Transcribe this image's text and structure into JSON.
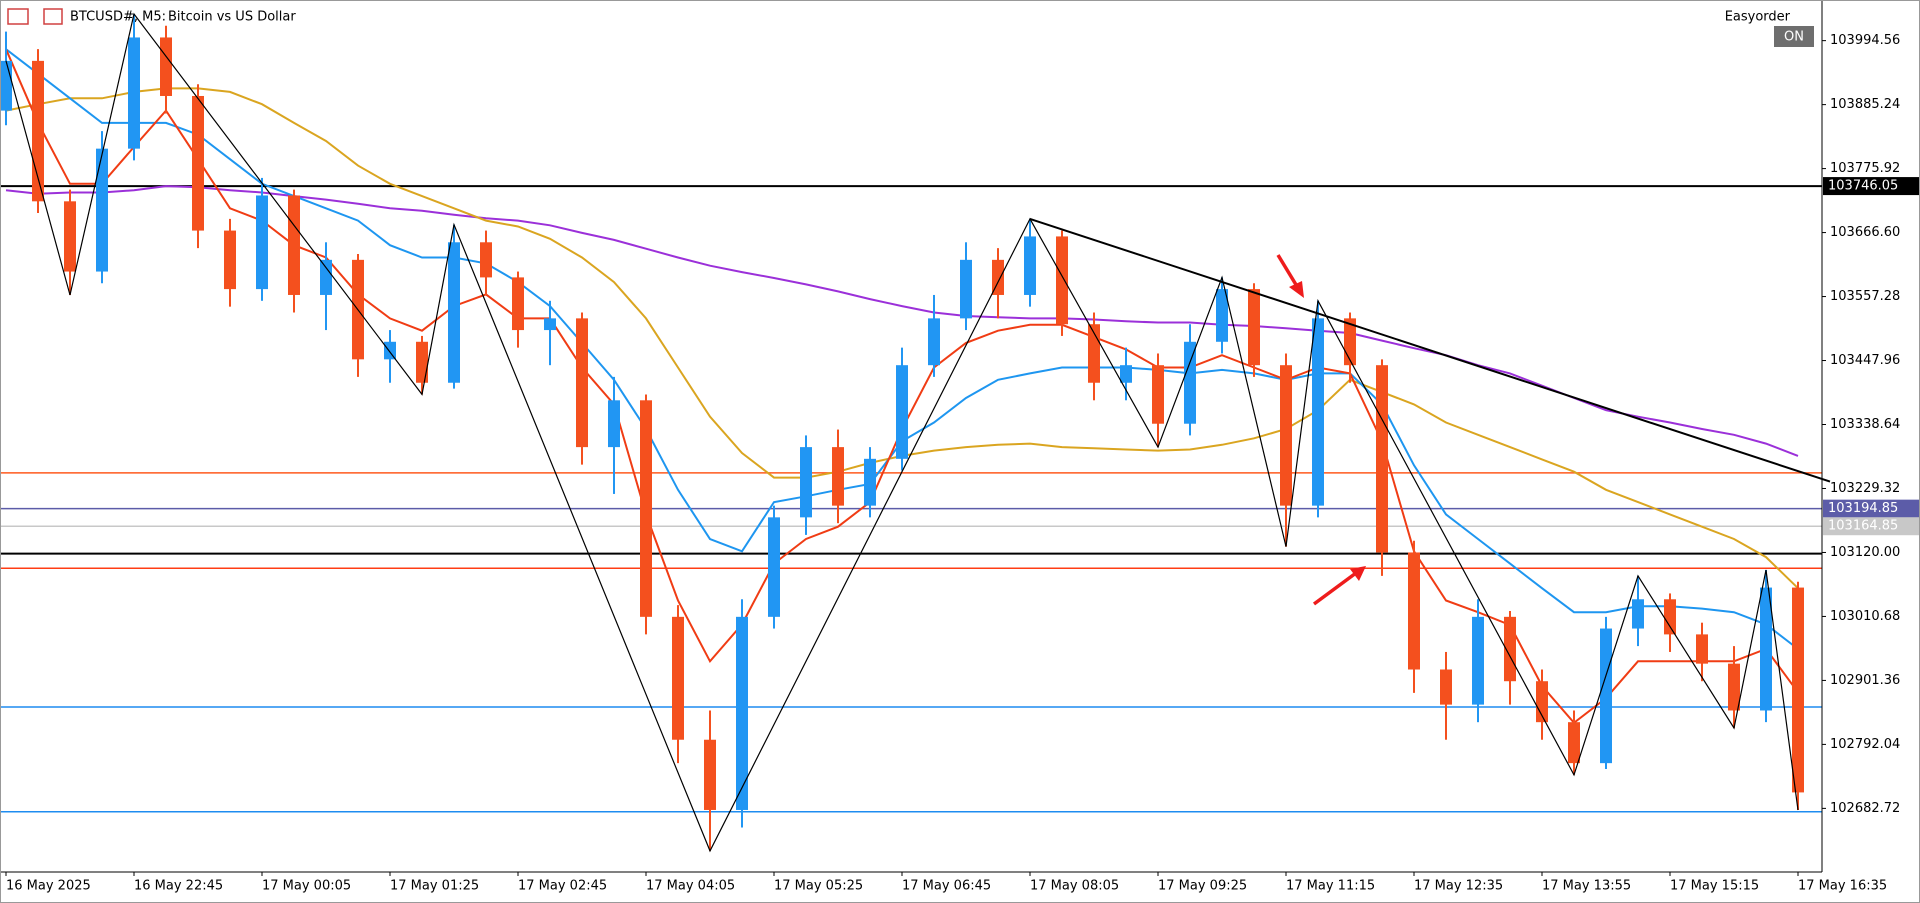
{
  "chart_data": {
    "type": "candlestick",
    "symbol": "BTCUSD#, M5:",
    "description": "Bitcoin vs US Dollar",
    "expert": "Easyorder",
    "button": "ON",
    "categories": [
      "16 May 2025",
      null,
      null,
      null,
      "16 May 22:45",
      null,
      null,
      null,
      "17 May 00:05",
      null,
      null,
      null,
      "17 May 01:25",
      null,
      null,
      null,
      "17 May 02:45",
      null,
      null,
      null,
      "17 May 04:05",
      null,
      null,
      null,
      "17 May 05:25",
      null,
      null,
      null,
      "17 May 06:45",
      null,
      null,
      null,
      "17 May 08:05",
      null,
      null,
      null,
      "17 May 09:25",
      null,
      null,
      null,
      "17 May 11:15",
      null,
      null,
      null,
      "17 May 12:35",
      null,
      null,
      null,
      "17 May 13:55",
      null,
      null,
      null,
      "17 May 15:15",
      null,
      null,
      null,
      "17 May 16:35"
    ],
    "open": [
      103875,
      103960,
      103720,
      103600,
      103810,
      104000,
      103900,
      103670,
      103570,
      103730,
      103560,
      103620,
      103450,
      103480,
      103410,
      103650,
      103590,
      103500,
      103520,
      103300,
      103380,
      103010,
      102800,
      102680,
      103010,
      103180,
      103300,
      103200,
      103280,
      103440,
      103520,
      103620,
      103560,
      103660,
      103510,
      103410,
      103440,
      103340,
      103480,
      103570,
      103440,
      103200,
      103520,
      103440,
      103120,
      102920,
      102860,
      103010,
      102900,
      102830,
      102760,
      102990,
      103040,
      102980,
      102930,
      102850,
      103060
    ],
    "high": [
      104010,
      103980,
      103740,
      103840,
      104040,
      104020,
      103920,
      103690,
      103760,
      103740,
      103650,
      103630,
      103500,
      103490,
      103680,
      103670,
      103600,
      103550,
      103530,
      103420,
      103390,
      103030,
      102850,
      103040,
      103200,
      103320,
      103330,
      103300,
      103470,
      103560,
      103650,
      103640,
      103690,
      103670,
      103530,
      103470,
      103460,
      103510,
      103590,
      103580,
      103460,
      103550,
      103530,
      103450,
      103140,
      102950,
      103040,
      103020,
      102920,
      102850,
      103010,
      103080,
      103050,
      103000,
      102960,
      103090,
      103070
    ],
    "low": [
      103850,
      103700,
      103560,
      103580,
      103790,
      103870,
      103640,
      103540,
      103550,
      103530,
      103500,
      103420,
      103410,
      103390,
      103400,
      103560,
      103470,
      103440,
      103270,
      103220,
      102980,
      102760,
      102610,
      102650,
      102990,
      103150,
      103170,
      103180,
      103260,
      103420,
      103500,
      103520,
      103540,
      103490,
      103380,
      103380,
      103300,
      103320,
      103460,
      103420,
      103130,
      103180,
      103410,
      103080,
      102880,
      102800,
      102830,
      102860,
      102800,
      102740,
      102750,
      102960,
      102950,
      102900,
      102820,
      102830,
      102680
    ],
    "close": [
      103960,
      103720,
      103600,
      103810,
      104000,
      103900,
      103670,
      103570,
      103730,
      103560,
      103620,
      103450,
      103480,
      103410,
      103650,
      103590,
      103500,
      103520,
      103300,
      103380,
      103010,
      102800,
      102680,
      103010,
      103180,
      103300,
      103200,
      103280,
      103440,
      103520,
      103620,
      103560,
      103660,
      103510,
      103410,
      103440,
      103340,
      103480,
      103570,
      103440,
      103200,
      103520,
      103440,
      103120,
      102920,
      102860,
      103010,
      102900,
      102830,
      102760,
      102990,
      103040,
      102980,
      102930,
      102850,
      103060,
      102710
    ],
    "up_color": "#2196f3",
    "down_color": "#f4501e",
    "moving_averages": [
      {
        "color": "#9b30d9",
        "values": [
          103739,
          103733,
          103735,
          103735,
          103739,
          103746,
          103744,
          103739,
          103735,
          103729,
          103723,
          103716,
          103708,
          103704,
          103697,
          103691,
          103687,
          103679,
          103666,
          103654,
          103639,
          103624,
          103610,
          103599,
          103589,
          103578,
          103566,
          103553,
          103541,
          103530,
          103524,
          103522,
          103520,
          103520,
          103518,
          103515,
          103513,
          103513,
          103509,
          103507,
          103503,
          103499,
          103495,
          103482,
          103469,
          103457,
          103440,
          103426,
          103405,
          103384,
          103363,
          103352,
          103342,
          103331,
          103321,
          103306,
          103285
        ]
      },
      {
        "color": "#daa520",
        "values": [
          103875,
          103886,
          103896,
          103896,
          103907,
          103913,
          103913,
          103907,
          103886,
          103854,
          103823,
          103781,
          103750,
          103729,
          103708,
          103687,
          103677,
          103656,
          103624,
          103582,
          103520,
          103436,
          103352,
          103290,
          103248,
          103248,
          103258,
          103273,
          103285,
          103294,
          103300,
          103304,
          103306,
          103300,
          103298,
          103296,
          103294,
          103296,
          103304,
          103315,
          103331,
          103363,
          103415,
          103394,
          103373,
          103342,
          103321,
          103300,
          103279,
          103258,
          103227,
          103206,
          103185,
          103164,
          103143,
          103112,
          103059
        ]
      },
      {
        "color": "#1e96f0",
        "values": [
          103980,
          103938,
          103896,
          103854,
          103854,
          103854,
          103834,
          103792,
          103750,
          103729,
          103708,
          103687,
          103645,
          103624,
          103624,
          103614,
          103582,
          103541,
          103478,
          103415,
          103331,
          103227,
          103143,
          103122,
          103206,
          103216,
          103227,
          103237,
          103310,
          103342,
          103384,
          103415,
          103426,
          103436,
          103436,
          103436,
          103432,
          103426,
          103432,
          103426,
          103415,
          103426,
          103426,
          103373,
          103269,
          103185,
          103143,
          103101,
          103059,
          103018,
          103018,
          103028,
          103028,
          103024,
          103018,
          102997,
          102955
        ]
      },
      {
        "color": "#f03c14",
        "values": [
          103980,
          103854,
          103750,
          103750,
          103813,
          103875,
          103792,
          103708,
          103687,
          103645,
          103624,
          103561,
          103520,
          103499,
          103541,
          103561,
          103520,
          103520,
          103436,
          103373,
          103185,
          103038,
          102934,
          102997,
          103101,
          103143,
          103164,
          103206,
          103331,
          103436,
          103478,
          103499,
          103509,
          103509,
          103488,
          103467,
          103436,
          103436,
          103457,
          103436,
          103415,
          103436,
          103426,
          103310,
          103122,
          103038,
          103018,
          102996,
          102892,
          102829,
          102871,
          102934,
          102934,
          102934,
          102934,
          102955,
          102881
        ]
      }
    ],
    "zigzag": {
      "x": [
        0,
        2,
        4,
        13,
        14,
        22,
        32,
        36,
        38,
        40,
        41,
        49,
        51,
        54,
        55,
        56
      ],
      "y": [
        103960,
        103560,
        104040,
        103390,
        103680,
        102610,
        103690,
        103300,
        103590,
        103130,
        103550,
        102740,
        103080,
        102820,
        103090,
        102680
      ]
    },
    "trendline": {
      "x": [
        32,
        57
      ],
      "y": [
        103690,
        103241
      ]
    },
    "levels": [
      {
        "price": 103746.05,
        "color": "#000000",
        "tag": true
      },
      {
        "price": 103256,
        "color": "#ff5a1e",
        "tag": false
      },
      {
        "price": 103194.85,
        "color": "#5c5ca8",
        "tag": true
      },
      {
        "price": 103164.85,
        "color": "#c8c8c8",
        "tag": true
      },
      {
        "price": 103118,
        "color": "#000000",
        "tag": false
      },
      {
        "price": 103093,
        "color": "#ff3c14",
        "tag": false
      },
      {
        "price": 102856,
        "color": "#1e8cf0",
        "tag": false
      },
      {
        "price": 102677,
        "color": "#1e8cf0",
        "tag": false
      }
    ],
    "ylim": [
      102574,
      104064
    ],
    "yticks": [
      {
        "value": 103994.56,
        "label": "103994.56"
      },
      {
        "value": 103885.24,
        "label": "103885.24"
      },
      {
        "value": 103775.92,
        "label": "103775.92"
      },
      {
        "value": 103666.6,
        "label": "103666.60"
      },
      {
        "value": 103557.28,
        "label": "103557.28"
      },
      {
        "value": 103447.96,
        "label": "103447.96"
      },
      {
        "value": 103338.64,
        "label": "103338.64"
      },
      {
        "value": 103229.32,
        "label": "103229.32"
      },
      {
        "value": 103120,
        "label": "103120.00"
      },
      {
        "value": 103010.68,
        "label": "103010.68"
      },
      {
        "value": 102901.36,
        "label": "102901.36"
      },
      {
        "value": 102792.04,
        "label": "102792.04"
      },
      {
        "value": 102682.72,
        "label": "102682.72"
      }
    ]
  }
}
